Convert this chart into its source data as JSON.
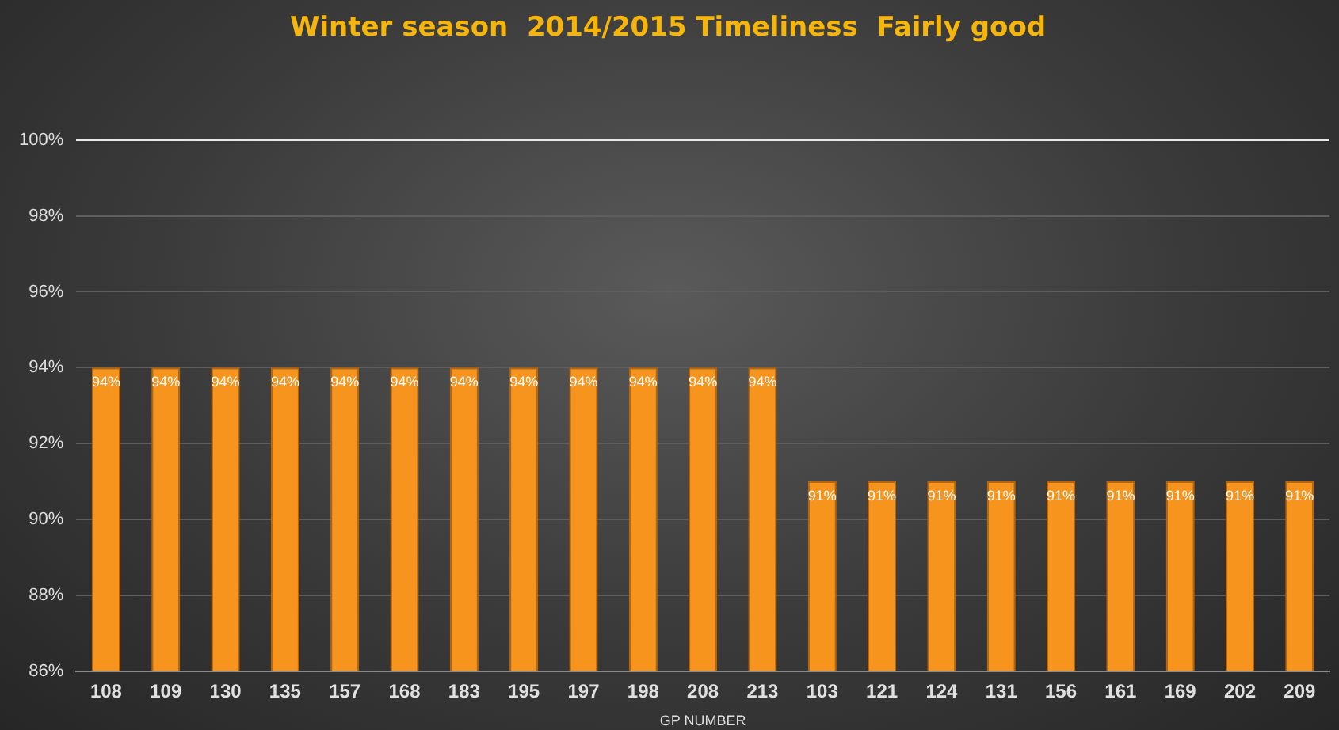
{
  "chart_data": {
    "type": "bar",
    "title": "Winter season  2014/2015 Timeliness  Fairly good",
    "xlabel": "GP NUMBER",
    "categories": [
      "108",
      "109",
      "130",
      "135",
      "157",
      "168",
      "183",
      "195",
      "197",
      "198",
      "208",
      "213",
      "103",
      "121",
      "124",
      "131",
      "156",
      "161",
      "169",
      "202",
      "209"
    ],
    "values": [
      94,
      94,
      94,
      94,
      94,
      94,
      94,
      94,
      94,
      94,
      94,
      94,
      91,
      91,
      91,
      91,
      91,
      91,
      91,
      91,
      91
    ],
    "value_labels": [
      "94%",
      "94%",
      "94%",
      "94%",
      "94%",
      "94%",
      "94%",
      "94%",
      "94%",
      "94%",
      "94%",
      "94%",
      "91%",
      "91%",
      "91%",
      "91%",
      "91%",
      "91%",
      "91%",
      "91%",
      "91%"
    ],
    "color": "#f7941d",
    "ylim": [
      86,
      100
    ],
    "yticks": [
      {
        "value": 86,
        "label": "86%"
      },
      {
        "value": 88,
        "label": "88%"
      },
      {
        "value": 90,
        "label": "90%"
      },
      {
        "value": 92,
        "label": "92%"
      },
      {
        "value": 94,
        "label": "94%"
      },
      {
        "value": 96,
        "label": "96%"
      },
      {
        "value": 98,
        "label": "98%"
      },
      {
        "value": 100,
        "label": "100%"
      }
    ],
    "grid": "y",
    "legend": false
  }
}
